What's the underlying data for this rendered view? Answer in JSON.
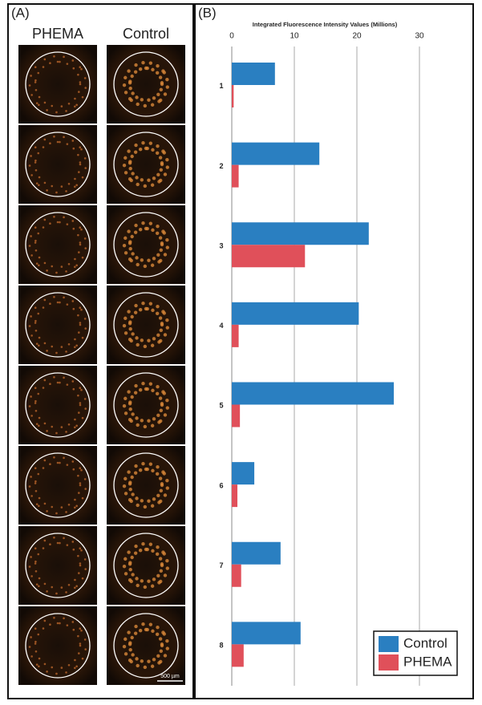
{
  "panel_a": {
    "label": "(A)",
    "columns": [
      "PHEMA",
      "Control"
    ],
    "scale_bar": "500 µm"
  },
  "panel_b": {
    "label": "(B)"
  },
  "chart_data": {
    "type": "hbar",
    "title": "Integrated Fluorescence Intensity Values (Millions)",
    "categories": [
      "1",
      "2",
      "3",
      "4",
      "5",
      "6",
      "7",
      "8"
    ],
    "series": [
      {
        "name": "Control",
        "color": "#2a7fc1",
        "values": [
          6.9,
          14.0,
          21.9,
          20.3,
          25.9,
          3.6,
          7.8,
          11.0
        ]
      },
      {
        "name": "PHEMA",
        "color": "#e0505a",
        "values": [
          0.3,
          1.1,
          11.7,
          1.1,
          1.3,
          0.9,
          1.5,
          1.9
        ]
      }
    ],
    "xlim": [
      0,
      30
    ],
    "xticks": [
      0,
      10,
      20,
      30
    ],
    "grid": true,
    "legend": "bottom-right"
  }
}
